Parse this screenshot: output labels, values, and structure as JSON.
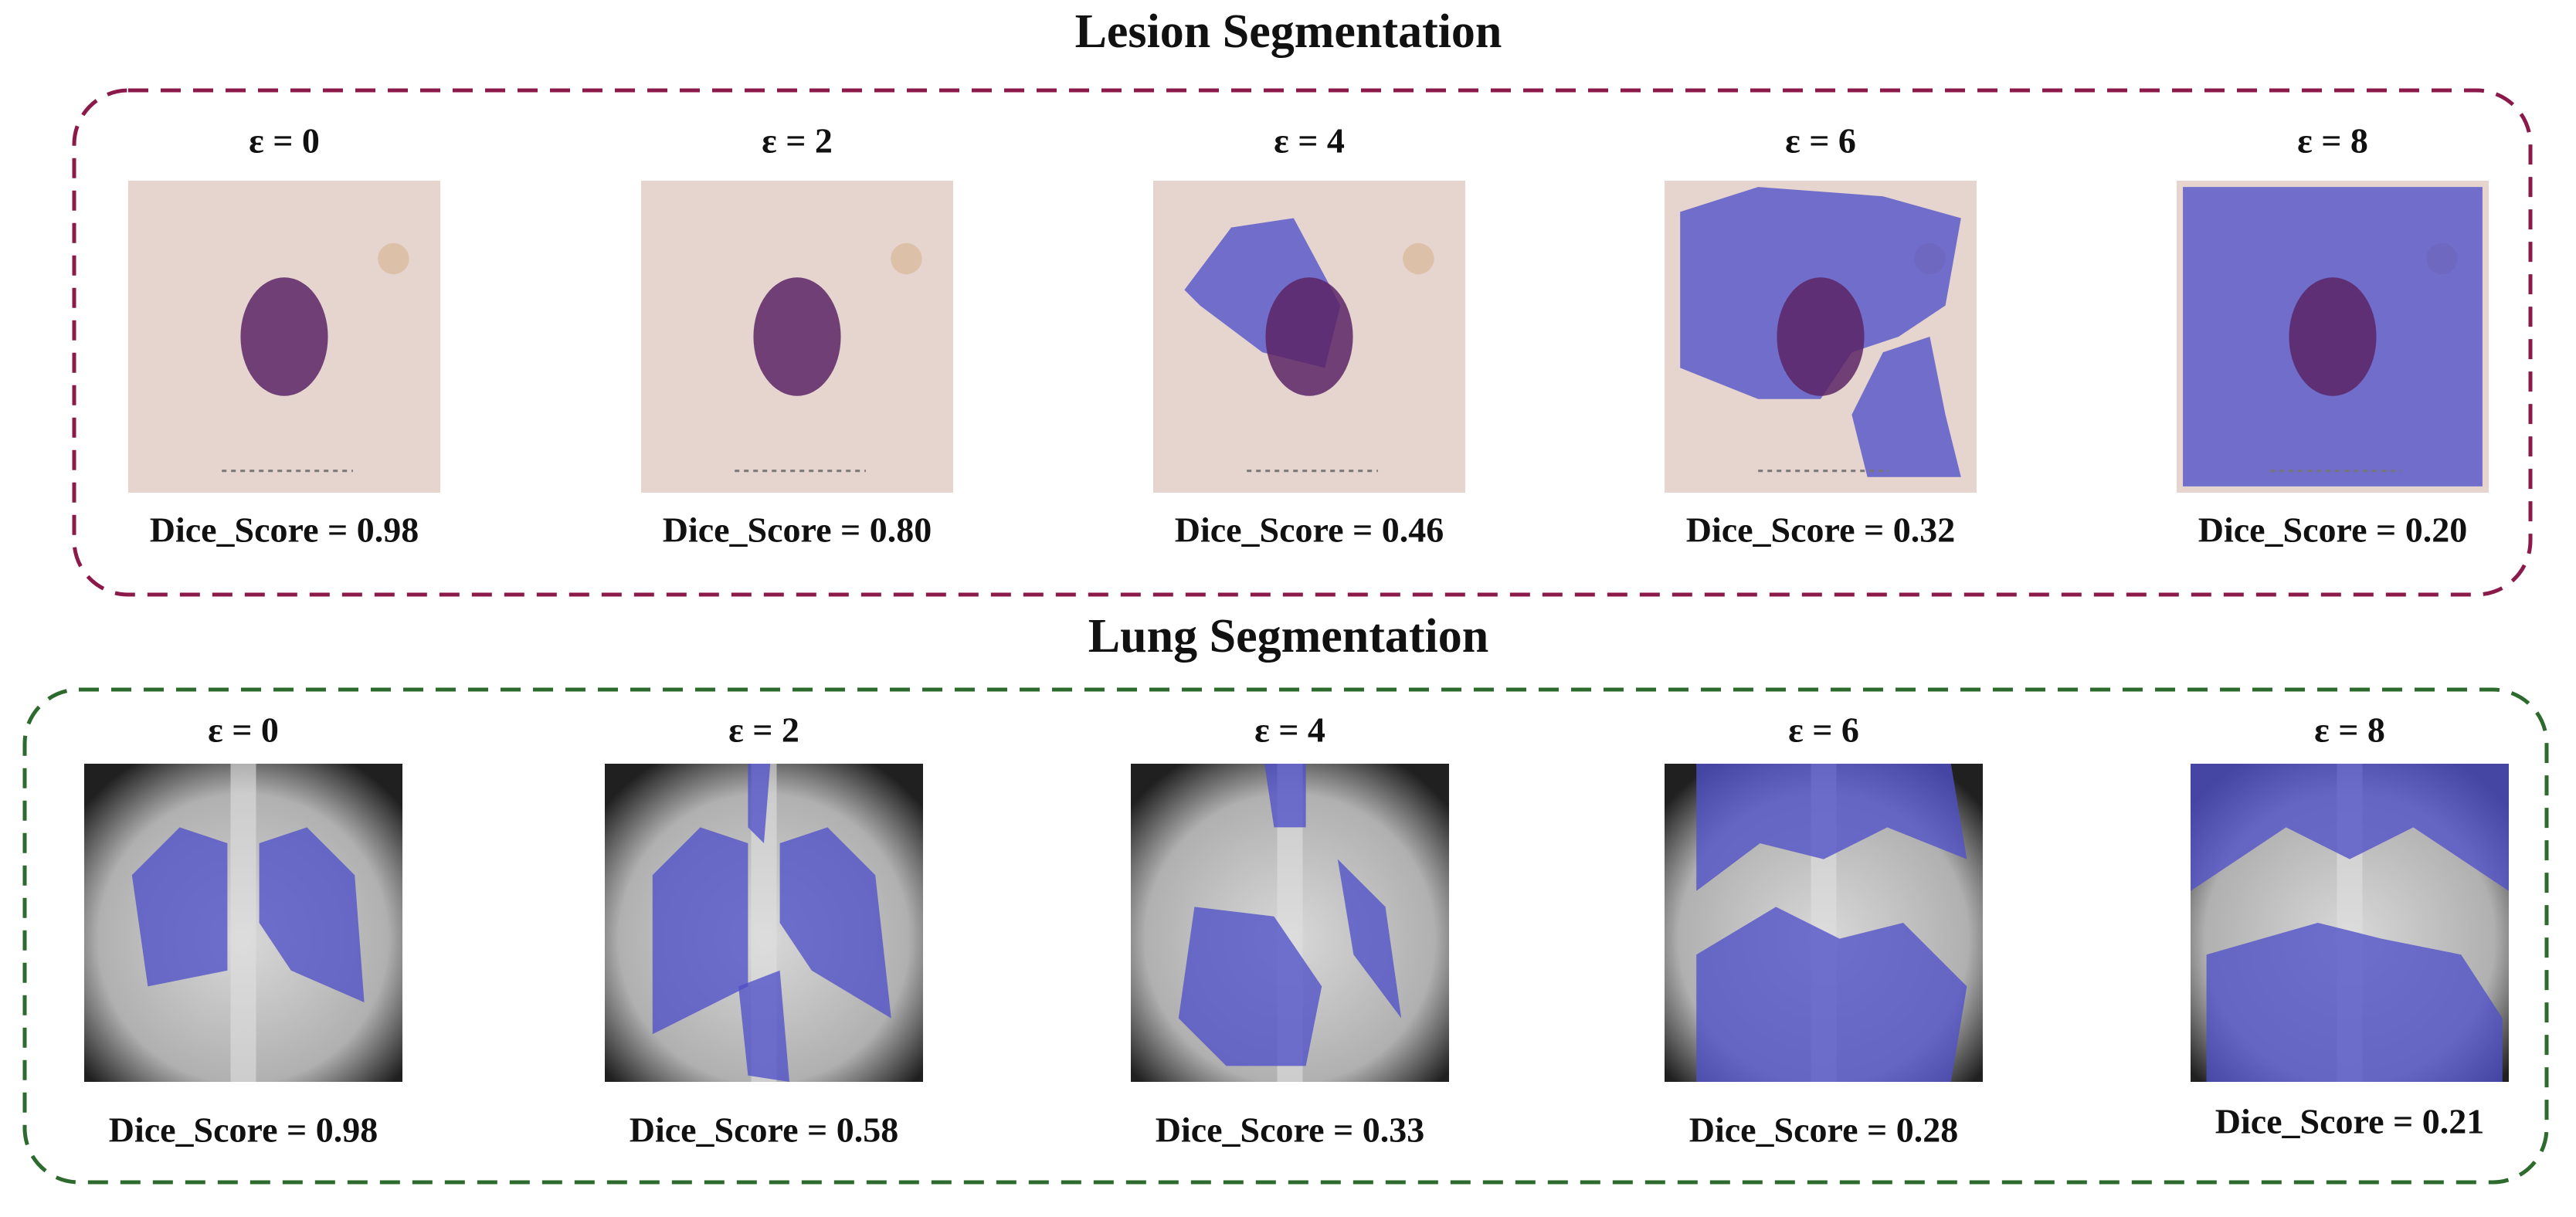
{
  "panels": [
    {
      "title": "Lesion Segmentation",
      "items": [
        {
          "label": "ε = 0",
          "score": "Dice_Score = 0.98"
        },
        {
          "label": "ε = 2",
          "score": "Dice_Score = 0.80"
        },
        {
          "label": "ε = 4",
          "score": "Dice_Score = 0.46"
        },
        {
          "label": "ε = 6",
          "score": "Dice_Score = 0.32"
        },
        {
          "label": "ε = 8",
          "score": "Dice_Score = 0.20"
        }
      ]
    },
    {
      "title": "Lung Segmentation",
      "items": [
        {
          "label": "ε = 0",
          "score": "Dice_Score = 0.98"
        },
        {
          "label": "ε = 2",
          "score": "Dice_Score = 0.58"
        },
        {
          "label": "ε = 4",
          "score": "Dice_Score = 0.33"
        },
        {
          "label": "ε = 6",
          "score": "Dice_Score = 0.28"
        },
        {
          "label": "ε = 8",
          "score": "Dice_Score = 0.21"
        }
      ]
    }
  ]
}
